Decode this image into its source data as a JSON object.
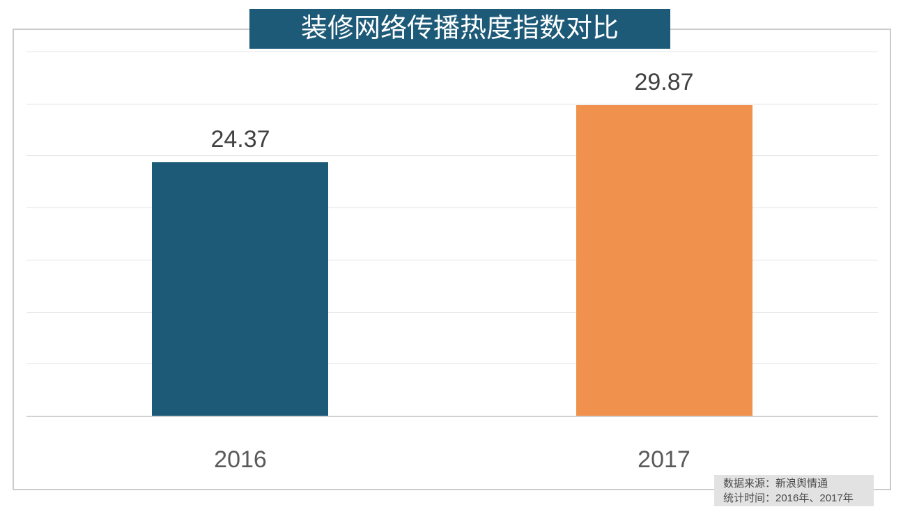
{
  "title": {
    "text": "装修网络传播热度指数对比",
    "bg_color": "#1d5a78",
    "text_color": "#ffffff"
  },
  "chart_data": {
    "type": "bar",
    "title": "装修网络传播热度指数对比",
    "categories": [
      "2016",
      "2017"
    ],
    "values": [
      24.37,
      29.87
    ],
    "value_labels": [
      "24.37",
      "29.87"
    ],
    "bar_colors": [
      "#1d5a78",
      "#f0924d"
    ],
    "xlabel": "",
    "ylabel": "",
    "ylim": [
      0,
      35
    ],
    "grid_step": 5,
    "grid": true,
    "legend": false,
    "tick_labels_shown": false
  },
  "source_note": {
    "line1": "数据来源：新浪舆情通",
    "line2": "统计时间：2016年、2017年",
    "bg_color": "#e2e2e2",
    "text_color": "#4a4a4a"
  },
  "colors": {
    "gridline": "#e2e2e2",
    "baseline": "#d2d2d2",
    "box_border": "#cbcbcb",
    "value_label": "#404040",
    "category_label": "#595959",
    "background": "#ffffff"
  }
}
